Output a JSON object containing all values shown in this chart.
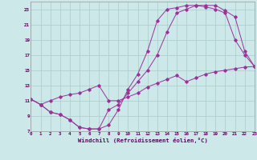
{
  "xlabel": "Windchill (Refroidissement éolien,°C)",
  "bg_color": "#cce8e8",
  "grid_color": "#aacccc",
  "line_color": "#993399",
  "ylim": [
    7,
    24
  ],
  "xlim": [
    0,
    23
  ],
  "yticks": [
    7,
    9,
    11,
    13,
    15,
    17,
    19,
    21,
    23
  ],
  "xticks": [
    0,
    1,
    2,
    3,
    4,
    5,
    6,
    7,
    8,
    9,
    10,
    11,
    12,
    13,
    14,
    15,
    16,
    17,
    18,
    19,
    20,
    21,
    22,
    23
  ],
  "series1_x": [
    0,
    1,
    2,
    3,
    4,
    5,
    6,
    7,
    8,
    9,
    10,
    11,
    12,
    13,
    14,
    15,
    16,
    17,
    18,
    19,
    20,
    21,
    22,
    23
  ],
  "series1_y": [
    11.2,
    10.5,
    9.5,
    9.2,
    8.5,
    7.5,
    7.3,
    7.3,
    7.8,
    9.8,
    12.5,
    14.5,
    17.5,
    21.5,
    23.0,
    23.2,
    23.5,
    23.5,
    23.3,
    23.0,
    22.5,
    19.0,
    17.0,
    15.5
  ],
  "series2_x": [
    0,
    1,
    2,
    3,
    4,
    5,
    6,
    7,
    8,
    9,
    10,
    11,
    12,
    13,
    14,
    15,
    16,
    17,
    18,
    19,
    20,
    21,
    22,
    23
  ],
  "series2_y": [
    11.2,
    10.5,
    9.5,
    9.2,
    8.5,
    7.5,
    7.3,
    7.3,
    9.8,
    10.5,
    12.0,
    13.5,
    15.0,
    17.0,
    20.0,
    22.5,
    23.0,
    23.5,
    23.5,
    23.5,
    22.8,
    22.0,
    17.5,
    15.5
  ],
  "series3_x": [
    0,
    1,
    2,
    3,
    4,
    5,
    6,
    7,
    8,
    9,
    10,
    11,
    12,
    13,
    14,
    15,
    16,
    17,
    18,
    19,
    20,
    21,
    22,
    23
  ],
  "series3_y": [
    11.2,
    10.5,
    11.0,
    11.5,
    11.8,
    12.0,
    12.5,
    13.0,
    11.0,
    11.0,
    11.5,
    12.0,
    12.8,
    13.3,
    13.8,
    14.3,
    13.5,
    14.0,
    14.5,
    14.8,
    15.0,
    15.2,
    15.4,
    15.5
  ]
}
